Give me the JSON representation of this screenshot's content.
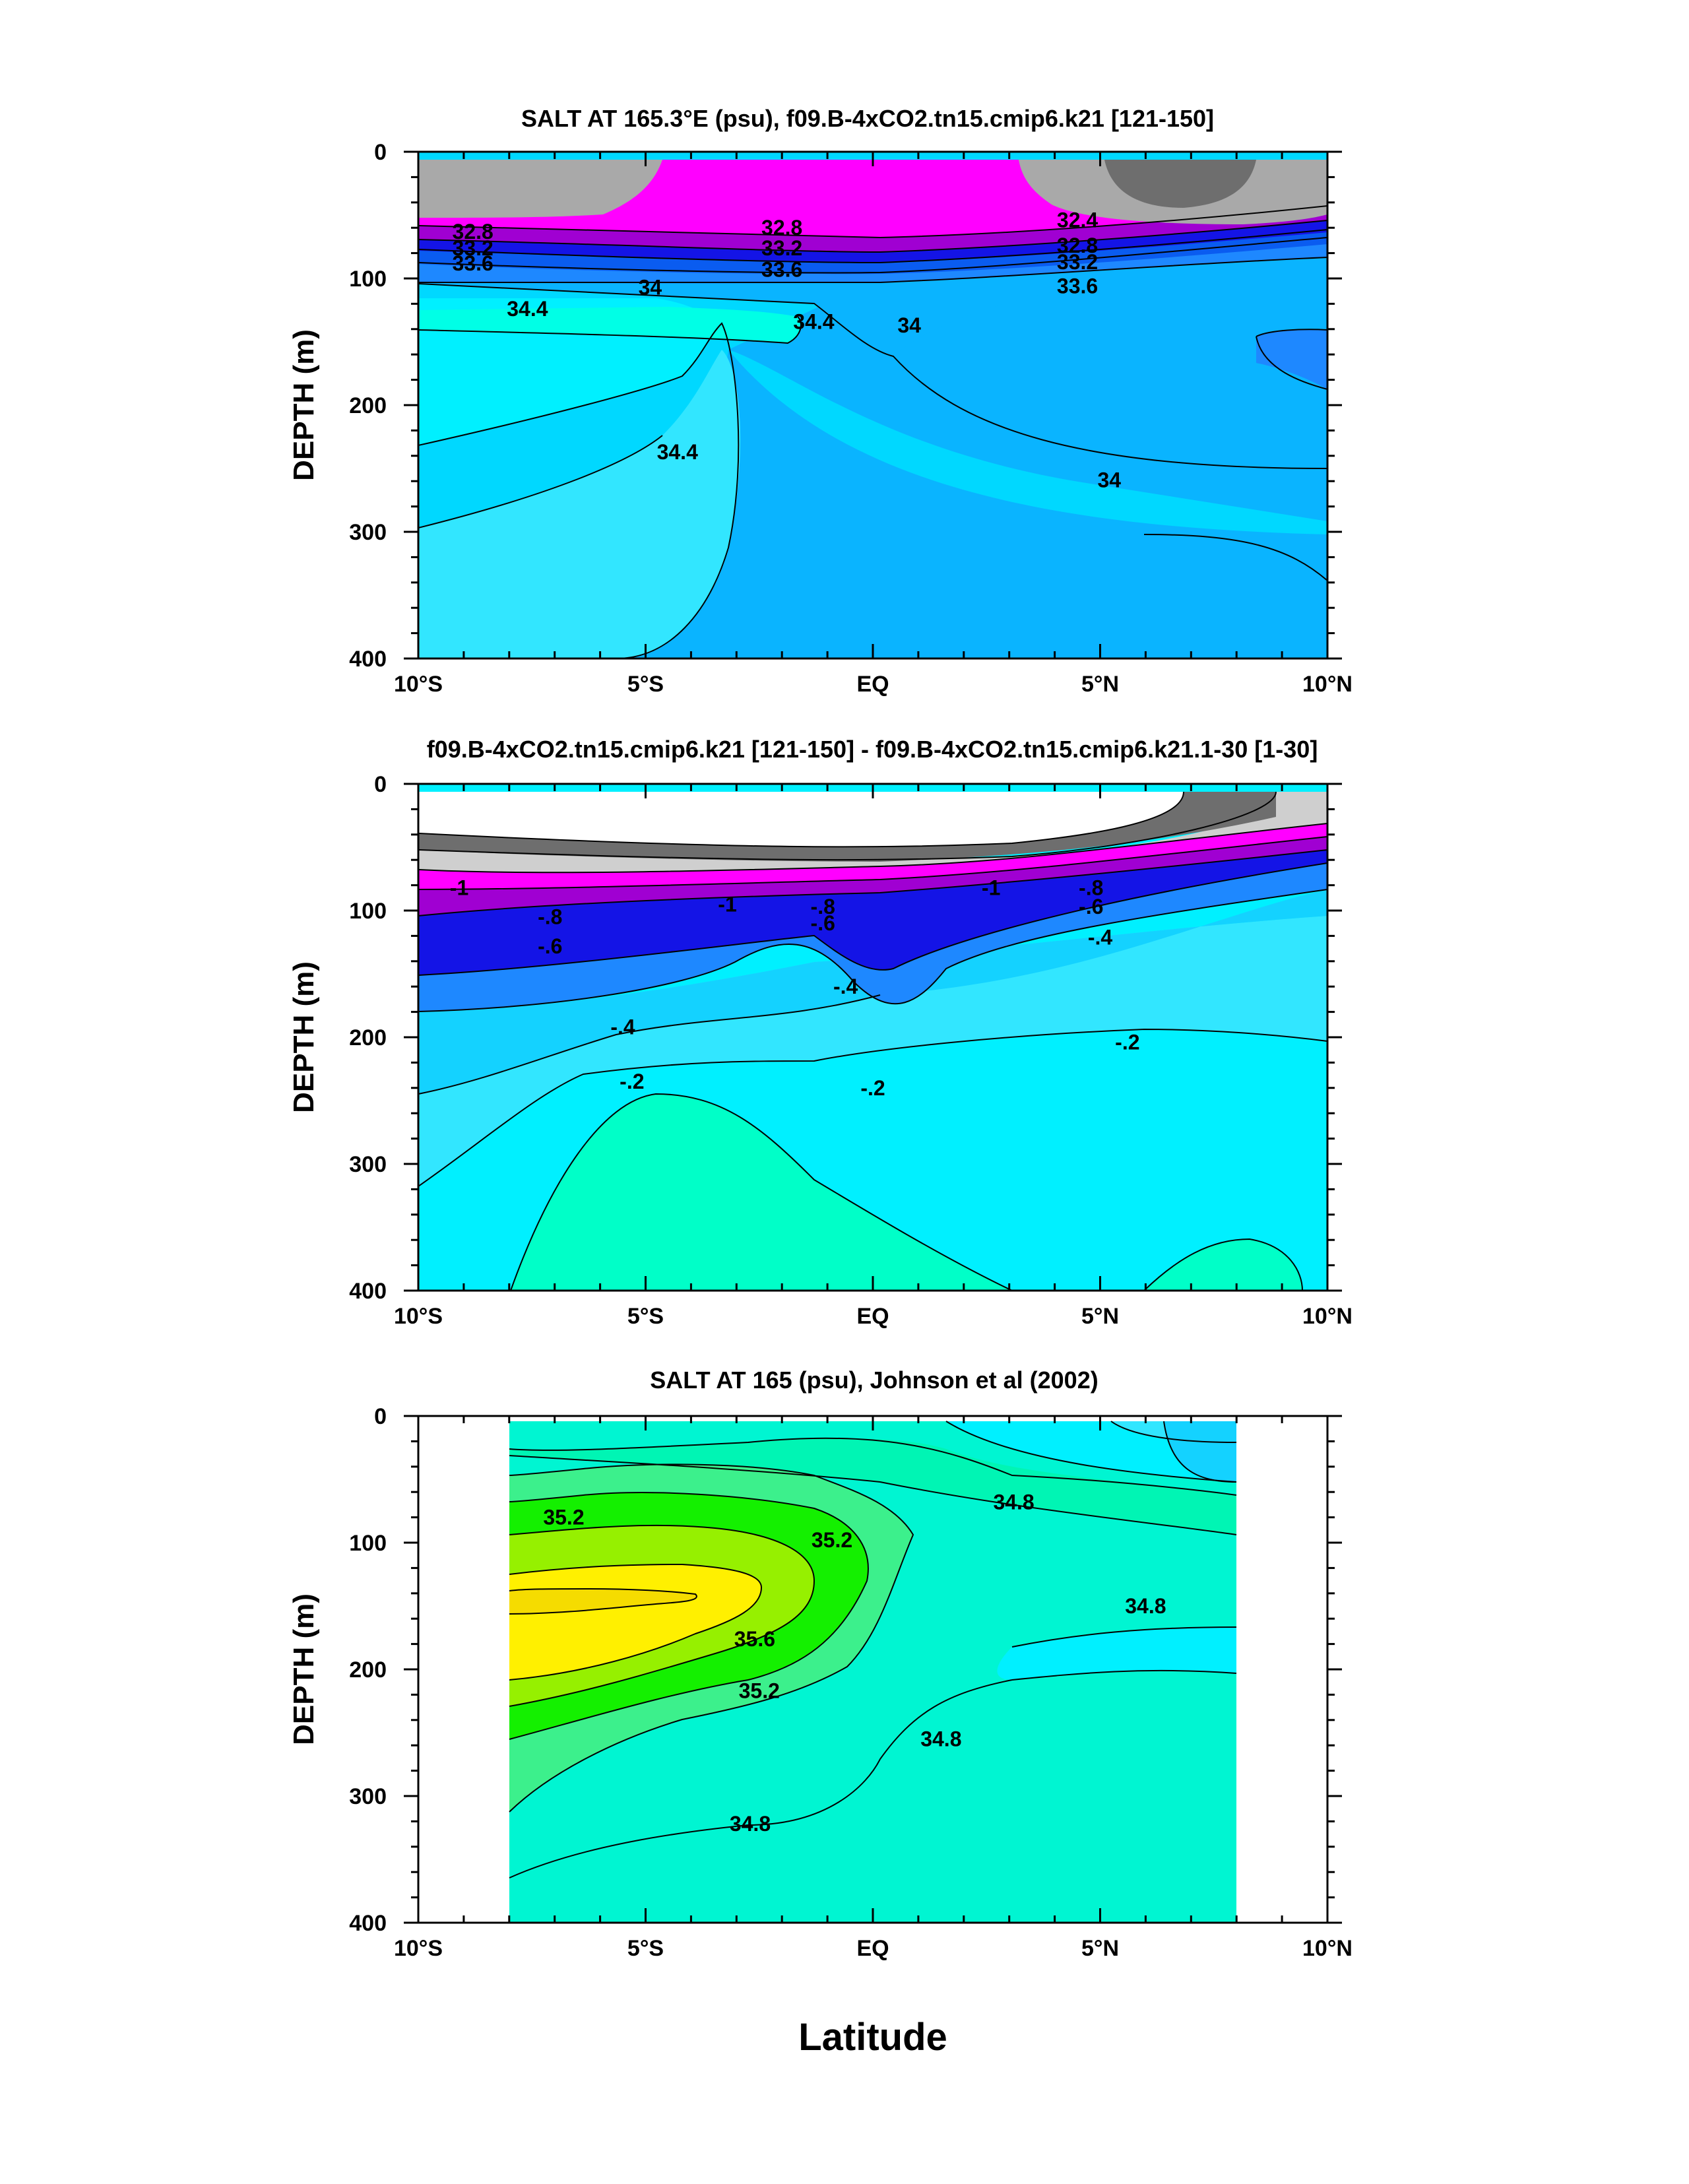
{
  "figure": {
    "xlabel": "Latitude"
  },
  "colors": {
    "gray_dark": "#6e6e6e",
    "gray": "#a9a9a9",
    "gray_light": "#cfcfcf",
    "magenta": "#ff00ff",
    "purple": "#a000d2",
    "blue_dark": "#1414e6",
    "blue": "#0a5cf0",
    "blue_mid": "#1e88ff",
    "blue_light": "#0ab4ff",
    "cyan_dim": "#14d2ff",
    "cyan_light": "#32e6ff",
    "cyan": "#00f0ff",
    "aqua": "#00ffe6",
    "teal": "#00ffc8",
    "sea": "#00f5b4",
    "green_light": "#3cf08c",
    "green": "#14f000",
    "lime": "#96f000",
    "yellow": "#fff000",
    "yellow_deep": "#f5dc00"
  },
  "chart_data": [
    {
      "type": "contour",
      "title": "SALT AT 165.3°E (psu), f09.B-4xCO2.tn15.cmip6.k21 [121-150]",
      "xlabel": "",
      "ylabel": "DEPTH (m)",
      "xlim": [
        -10,
        10
      ],
      "ylim": [
        400,
        0
      ],
      "x_ticks": [
        -10,
        -5,
        0,
        5,
        10
      ],
      "x_tick_labels": [
        "10°S",
        "5°S",
        "EQ",
        "5°N",
        "10°N"
      ],
      "y_ticks": [
        0,
        100,
        200,
        300,
        400
      ],
      "y_tick_labels": [
        "0",
        "100",
        "200",
        "300",
        "400"
      ],
      "contour_labels": [
        {
          "text": "32.8",
          "lat": -8.8,
          "depth": 63
        },
        {
          "text": "33.2",
          "lat": -8.8,
          "depth": 76
        },
        {
          "text": "33.6",
          "lat": -8.8,
          "depth": 88
        },
        {
          "text": "32.8",
          "lat": -2.0,
          "depth": 60
        },
        {
          "text": "33.2",
          "lat": -2.0,
          "depth": 76
        },
        {
          "text": "33.6",
          "lat": -2.0,
          "depth": 93
        },
        {
          "text": "32.4",
          "lat": 4.5,
          "depth": 54
        },
        {
          "text": "32.8",
          "lat": 4.5,
          "depth": 74
        },
        {
          "text": "33.2",
          "lat": 4.5,
          "depth": 87
        },
        {
          "text": "33.6",
          "lat": 4.5,
          "depth": 106
        },
        {
          "text": "34",
          "lat": -4.9,
          "depth": 107
        },
        {
          "text": "34.4",
          "lat": -7.6,
          "depth": 124
        },
        {
          "text": "34.4",
          "lat": -1.3,
          "depth": 134
        },
        {
          "text": "34",
          "lat": 0.8,
          "depth": 137
        },
        {
          "text": "34.4",
          "lat": -4.3,
          "depth": 237
        },
        {
          "text": "34",
          "lat": 5.2,
          "depth": 259
        }
      ]
    },
    {
      "type": "contour",
      "title": "f09.B-4xCO2.tn15.cmip6.k21 [121-150] - f09.B-4xCO2.tn15.cmip6.k21.1-30 [1-30]",
      "xlabel": "",
      "ylabel": "DEPTH (m)",
      "xlim": [
        -10,
        10
      ],
      "ylim": [
        400,
        0
      ],
      "x_ticks": [
        -10,
        -5,
        0,
        5,
        10
      ],
      "x_tick_labels": [
        "10°S",
        "5°S",
        "EQ",
        "5°N",
        "10°N"
      ],
      "y_ticks": [
        0,
        100,
        200,
        300,
        400
      ],
      "y_tick_labels": [
        "0",
        "100",
        "200",
        "300",
        "400"
      ],
      "contour_labels": [
        {
          "text": "-1",
          "lat": -9.1,
          "depth": 82
        },
        {
          "text": "-.8",
          "lat": -7.1,
          "depth": 105
        },
        {
          "text": "-.6",
          "lat": -7.1,
          "depth": 128
        },
        {
          "text": "-1",
          "lat": -3.2,
          "depth": 95
        },
        {
          "text": "-.8",
          "lat": -1.1,
          "depth": 97
        },
        {
          "text": "-.6",
          "lat": -1.1,
          "depth": 110
        },
        {
          "text": "-1",
          "lat": 2.6,
          "depth": 82
        },
        {
          "text": "-.8",
          "lat": 4.8,
          "depth": 82
        },
        {
          "text": "-.6",
          "lat": 4.8,
          "depth": 97
        },
        {
          "text": "-.4",
          "lat": 5.0,
          "depth": 121
        },
        {
          "text": "-.4",
          "lat": -0.6,
          "depth": 160
        },
        {
          "text": "-.4",
          "lat": -5.5,
          "depth": 192
        },
        {
          "text": "-.2",
          "lat": -5.3,
          "depth": 235
        },
        {
          "text": "-.2",
          "lat": 0.0,
          "depth": 240
        },
        {
          "text": "-.2",
          "lat": 5.6,
          "depth": 204
        }
      ]
    },
    {
      "type": "contour",
      "title": "SALT AT 165 (psu), Johnson et al (2002)",
      "xlabel": "Latitude",
      "ylabel": "DEPTH (m)",
      "xlim": [
        -10,
        10
      ],
      "ylim": [
        400,
        0
      ],
      "x_ticks": [
        -10,
        -5,
        0,
        5,
        10
      ],
      "x_tick_labels": [
        "10°S",
        "5°S",
        "EQ",
        "5°N",
        "10°N"
      ],
      "y_ticks": [
        0,
        100,
        200,
        300,
        400
      ],
      "y_tick_labels": [
        "0",
        "100",
        "200",
        "300",
        "400"
      ],
      "data_extent_lat": [
        -8,
        8
      ],
      "contour_labels": [
        {
          "text": "35.2",
          "lat": -6.8,
          "depth": 80
        },
        {
          "text": "35.2",
          "lat": -0.9,
          "depth": 98
        },
        {
          "text": "34.8",
          "lat": 3.1,
          "depth": 68
        },
        {
          "text": "34.8",
          "lat": 6.0,
          "depth": 150
        },
        {
          "text": "35.6",
          "lat": -2.6,
          "depth": 176
        },
        {
          "text": "35.2",
          "lat": -2.5,
          "depth": 217
        },
        {
          "text": "34.8",
          "lat": 1.5,
          "depth": 255
        },
        {
          "text": "34.8",
          "lat": -2.7,
          "depth": 322
        }
      ]
    }
  ]
}
